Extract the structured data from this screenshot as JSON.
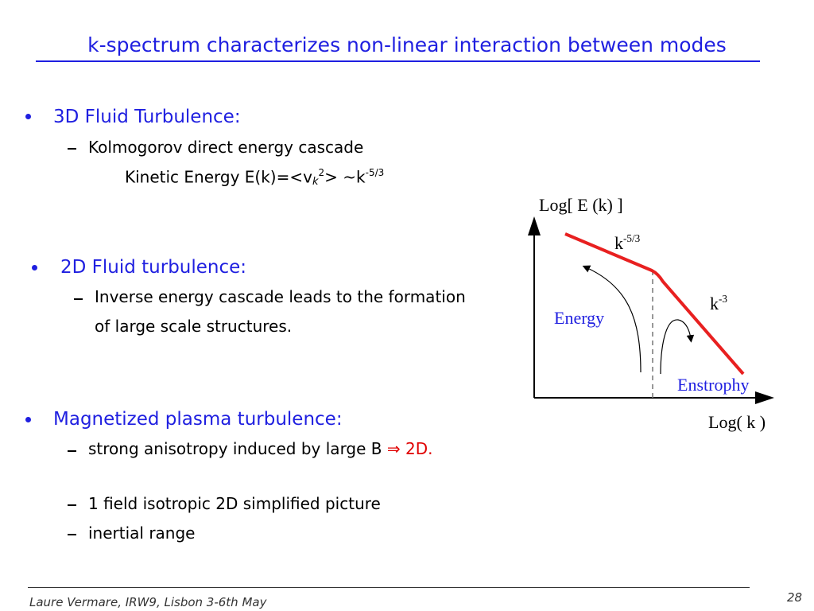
{
  "title": "k-spectrum characterizes non-linear interaction between modes",
  "bullets": [
    {
      "text": "3D Fluid Turbulence:",
      "items": [
        "Kolmogorov direct energy cascade"
      ],
      "formula": {
        "lead": "Kinetic Energy E(k)=<v",
        "sub": "k",
        "sup": "2",
        "mid": "> ~k",
        "exp": "-5/3"
      }
    },
    {
      "text": "2D Fluid turbulence:",
      "items": [
        "Inverse energy cascade leads to the formation of large scale structures."
      ]
    },
    {
      "text": "Magnetized plasma turbulence:",
      "items": [
        {
          "text": "strong anisotropy induced by large B",
          "highlight": "⇒ 2D."
        },
        "1 field isotropic 2D simplified picture",
        "inertial range"
      ]
    }
  ],
  "diagram": {
    "y_label": "Log[ E (k) ]",
    "x_label": "Log( k )",
    "slope1": {
      "base": "k",
      "exp": "-5/3"
    },
    "slope2": {
      "base": "k",
      "exp": "-3"
    },
    "energy": "Energy",
    "enstrophy": "Enstrophy"
  },
  "footer": {
    "text": "Laure Vermare, IRW9, Lisbon 3-6th May",
    "page": "28"
  }
}
